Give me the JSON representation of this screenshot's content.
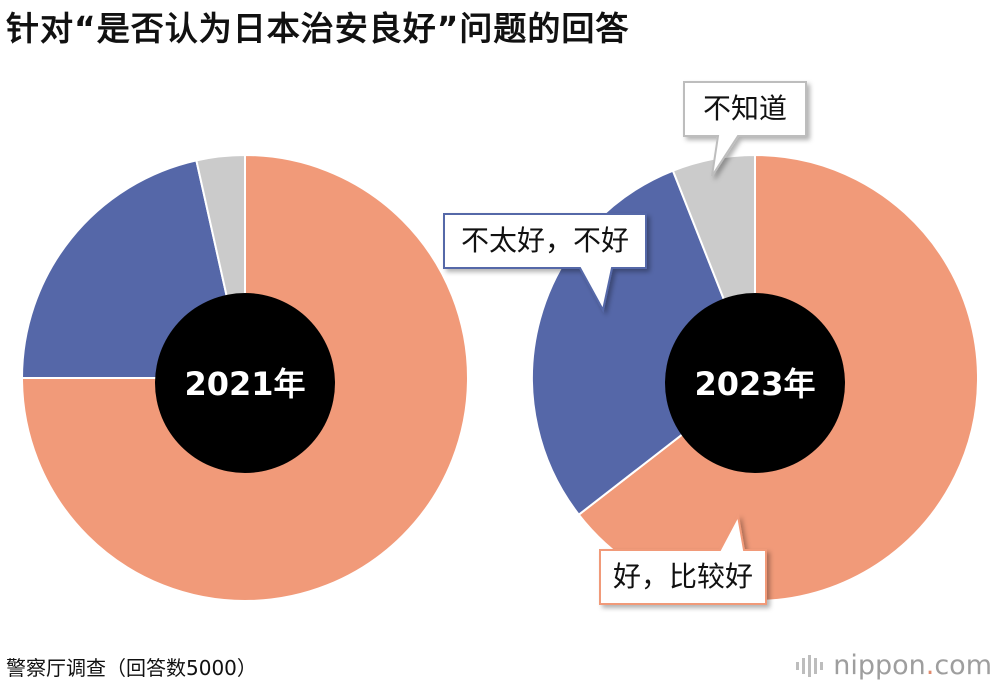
{
  "title": "针对“是否认为日本治安良好”问题的回答",
  "source": "警察厅调查（回答数5000）",
  "brand": {
    "name": "nippon",
    "dot": ".",
    "domain": "com",
    "logo_icon": "sound-bars-icon"
  },
  "colors": {
    "good": "#f19a79",
    "bad": "#5567a8",
    "unknown": "#cbcbcb",
    "hole": "#000000"
  },
  "chart_data": [
    {
      "type": "pie",
      "title": "2021年",
      "categories": [
        "好，比较好",
        "不太好，不好",
        "不知道"
      ],
      "values": [
        75.0,
        21.5,
        3.5
      ],
      "start_angle": "12 o'clock, clockwise",
      "legend": "none"
    },
    {
      "type": "pie",
      "title": "2023年",
      "categories": [
        "好，比较好",
        "不太好，不好",
        "不知道"
      ],
      "values": [
        64.5,
        29.5,
        6.0
      ],
      "start_angle": "12 o'clock, clockwise",
      "callouts": {
        "unknown": "不知道",
        "bad": "不太好，不好",
        "good": "好，比较好"
      }
    }
  ]
}
